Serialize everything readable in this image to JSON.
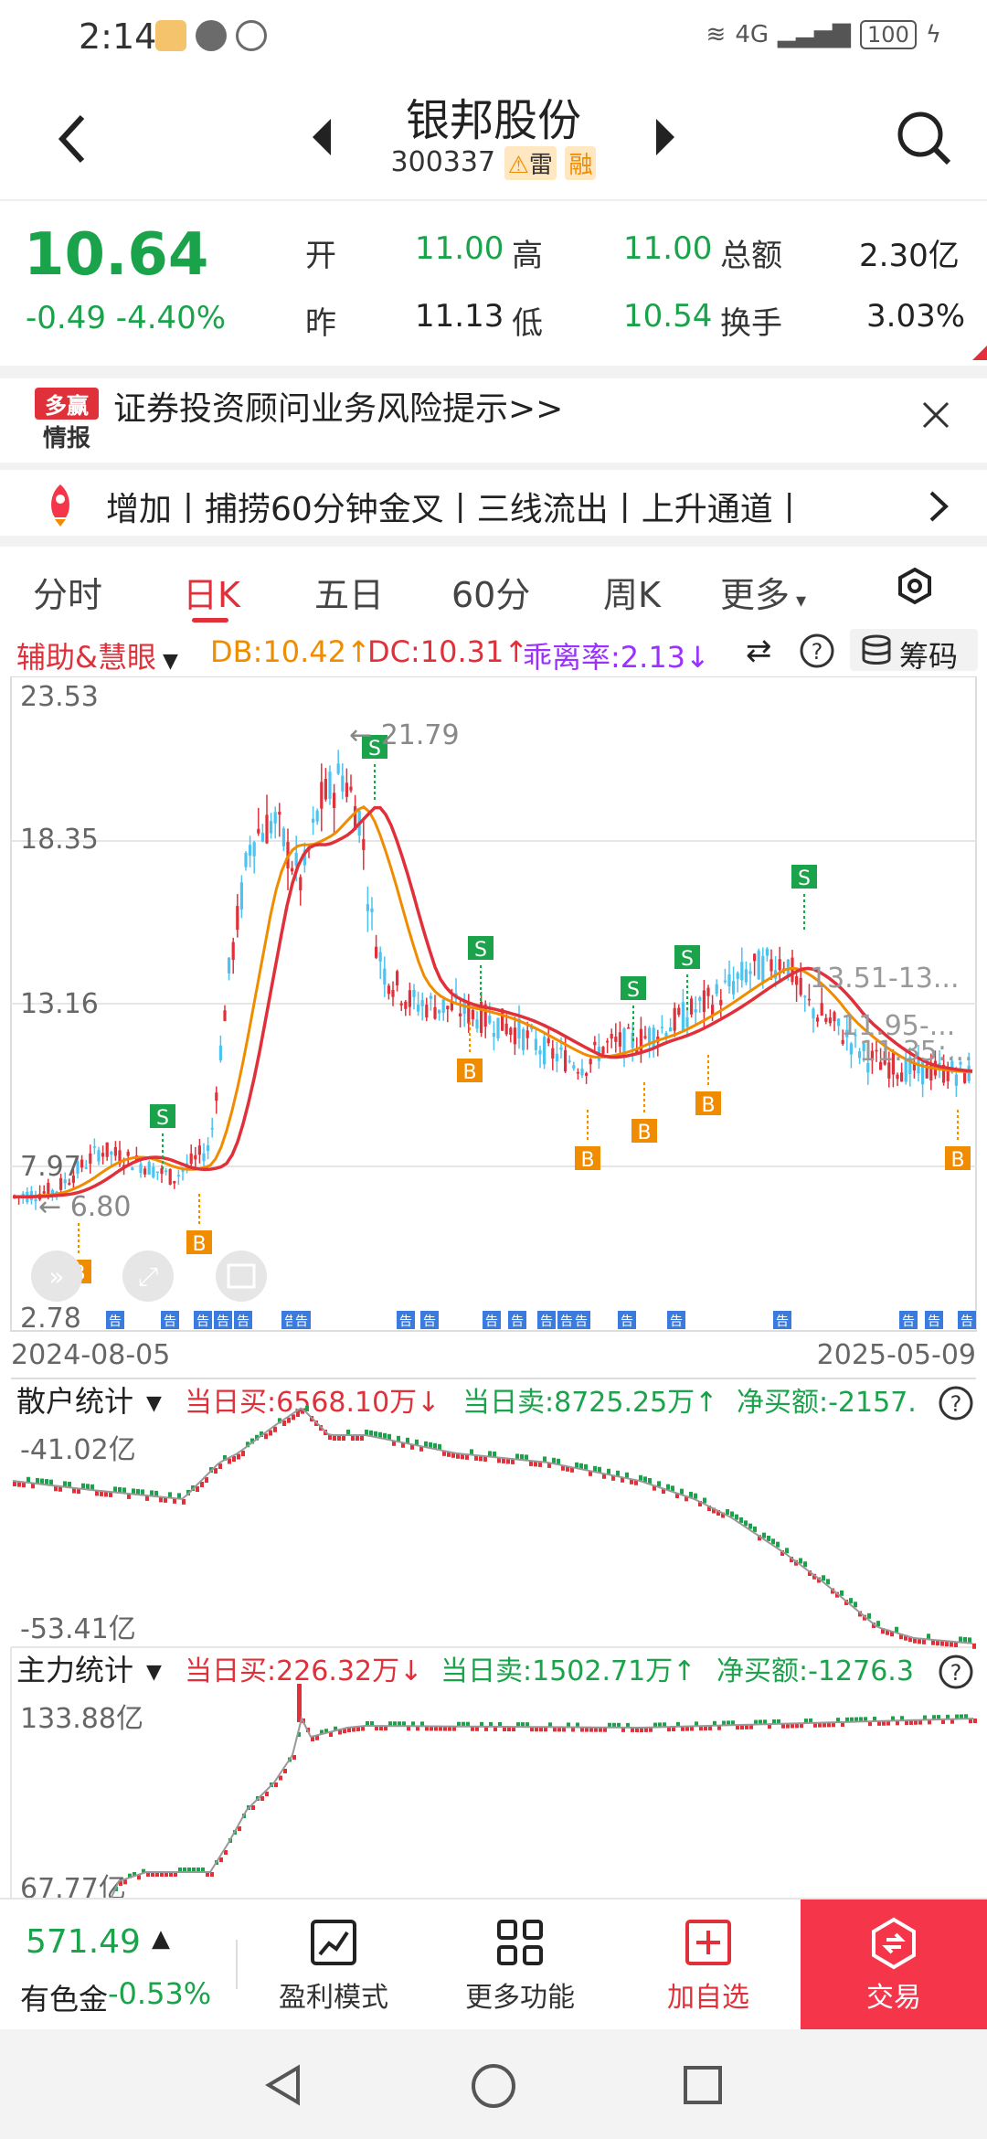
{
  "status_bar": {
    "time": "2:14",
    "battery": "100",
    "network": "4G"
  },
  "header": {
    "title": "银邦股份",
    "code": "300337",
    "tag_risk": "雷",
    "tag_margin": "融"
  },
  "quote": {
    "price": "10.64",
    "change": "-0.49",
    "change_pct": "-4.40%",
    "labels": {
      "open": "开",
      "high": "高",
      "total": "总额",
      "prev": "昨",
      "low": "低",
      "turnover": "换手"
    },
    "open": "11.00",
    "high": "11.00",
    "total": "2.30亿",
    "prev": "11.13",
    "low": "10.54",
    "turnover": "3.03%"
  },
  "risk_banner": {
    "logo_top": "多赢",
    "logo_bottom": "情报",
    "text": "证券投资顾问业务风险提示>>"
  },
  "ticker": {
    "text": "增加丨捕捞60分钟金叉丨三线流出丨上升通道丨"
  },
  "tabs": [
    "分时",
    "日K",
    "五日",
    "60分",
    "周K",
    "更多"
  ],
  "active_tab": "日K",
  "indicator_bar": {
    "name": "辅助&慧眼",
    "db": "DB:10.42↑",
    "dc": "DC:10.31↑",
    "bias": "乖离率:2.13↓",
    "chips": "筹码",
    "colors": {
      "db": "#f08c00",
      "dc": "#e0303a",
      "bias": "#9b30ff"
    }
  },
  "kchart": {
    "y_ticks": [
      "23.53",
      "18.35",
      "13.16",
      "7.97",
      "2.78"
    ],
    "max_label": "21.79",
    "min_label": "6.80",
    "right_labels": [
      "13.51-13...",
      "11.95-...",
      "11.35:..."
    ],
    "date_start": "2024-08-05",
    "date_end": "2025-05-09",
    "notice_label": "告",
    "buy_label": "B",
    "sell_label": "S"
  },
  "retail_panel": {
    "title": "散户统计",
    "buy": "当日买:6568.10万↓",
    "sell": "当日卖:8725.25万↑",
    "net": "净买额:-2157.",
    "y_top": "-41.02亿",
    "y_bottom": "-53.41亿"
  },
  "main_panel": {
    "title": "主力统计",
    "buy": "当日买:226.32万↓",
    "sell": "当日卖:1502.71万↑",
    "net": "净买额:-1276.3",
    "y_top": "133.88亿",
    "y_bottom": "67.77亿"
  },
  "bottom_nav": {
    "index_value": "571.49",
    "index_name": "有色金",
    "index_change": "-0.53%",
    "items": [
      "盈利模式",
      "更多功能",
      "加自选"
    ],
    "trade": "交易"
  },
  "colors": {
    "up": "#e0303a",
    "down": "#1aa34a",
    "kdown": "#4cc3f0",
    "accent": "#f5364a",
    "orange": "#f08c00"
  }
}
